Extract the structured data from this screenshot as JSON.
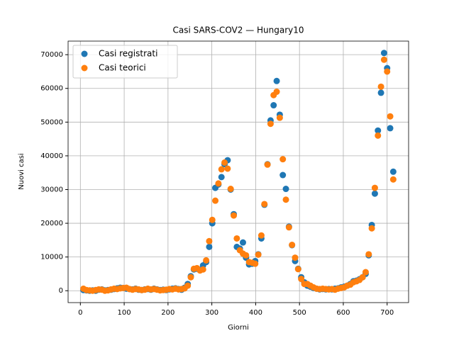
{
  "chart_data": {
    "type": "scatter",
    "title": "Casi SARS-COV2 — Hungary10",
    "x_label": "Giorni",
    "y_label": "Nuovi casi",
    "x": [
      7,
      14,
      21,
      28,
      35,
      42,
      49,
      56,
      63,
      70,
      77,
      84,
      91,
      98,
      105,
      112,
      119,
      126,
      133,
      140,
      147,
      154,
      161,
      168,
      175,
      182,
      189,
      196,
      203,
      210,
      217,
      224,
      231,
      238,
      245,
      252,
      259,
      266,
      273,
      280,
      287,
      294,
      301,
      308,
      315,
      322,
      329,
      336,
      343,
      350,
      357,
      364,
      371,
      378,
      385,
      392,
      399,
      406,
      413,
      420,
      427,
      434,
      441,
      448,
      455,
      462,
      469,
      476,
      483,
      490,
      497,
      504,
      511,
      518,
      525,
      532,
      539,
      546,
      553,
      560,
      567,
      574,
      581,
      588,
      595,
      602,
      609,
      616,
      623,
      630,
      637,
      644,
      651,
      658,
      665,
      672,
      679,
      686,
      693,
      700,
      707,
      714
    ],
    "series": [
      {
        "name": "Casi registrati",
        "color": "#1f77b4",
        "values": [
          200,
          100,
          0,
          100,
          0,
          300,
          400,
          100,
          200,
          300,
          500,
          700,
          900,
          800,
          600,
          500,
          400,
          600,
          300,
          200,
          400,
          500,
          300,
          600,
          400,
          200,
          300,
          200,
          400,
          600,
          700,
          500,
          300,
          900,
          2000,
          4300,
          6300,
          6500,
          6200,
          7500,
          8500,
          13000,
          20000,
          30500,
          31500,
          33700,
          37500,
          38700,
          30000,
          22700,
          13000,
          12500,
          14300,
          9800,
          7800,
          8000,
          8800,
          10800,
          15500,
          25500,
          37500,
          50500,
          55000,
          62200,
          52200,
          34300,
          30200,
          19000,
          13500,
          8800,
          6500,
          4000,
          2500,
          1500,
          1200,
          800,
          600,
          400,
          500,
          400,
          500,
          400,
          600,
          700,
          1000,
          1200,
          1500,
          2000,
          2800,
          3000,
          3400,
          4000,
          5000,
          10500,
          19500,
          28800,
          47500,
          58700,
          70500,
          66000,
          48200,
          35300
        ]
      },
      {
        "name": "Casi teorici",
        "color": "#ff7f0e",
        "values": [
          600,
          200,
          100,
          0,
          200,
          400,
          300,
          0,
          100,
          400,
          600,
          500,
          700,
          800,
          900,
          500,
          300,
          500,
          400,
          200,
          300,
          600,
          400,
          500,
          300,
          100,
          200,
          300,
          500,
          400,
          600,
          400,
          500,
          700,
          1500,
          4000,
          6500,
          6700,
          6000,
          6300,
          9000,
          14700,
          21000,
          26700,
          31800,
          36000,
          38000,
          36200,
          30200,
          22300,
          15500,
          12000,
          11000,
          10500,
          8500,
          8300,
          8000,
          10700,
          16400,
          25700,
          37400,
          49500,
          58000,
          59000,
          51300,
          39000,
          27000,
          18800,
          13600,
          9800,
          6400,
          3500,
          2000,
          2000,
          1500,
          1000,
          600,
          500,
          600,
          500,
          400,
          500,
          300,
          600,
          800,
          1000,
          1500,
          1800,
          2500,
          2800,
          3200,
          4000,
          5500,
          10800,
          18500,
          30500,
          46000,
          60500,
          68500,
          65000,
          51700,
          33000
        ]
      }
    ],
    "xlim": [
      -28,
      749
    ],
    "ylim": [
      -3525,
      74025
    ],
    "xticks": [
      0,
      100,
      200,
      300,
      400,
      500,
      600,
      700
    ],
    "yticks": [
      0,
      10000,
      20000,
      30000,
      40000,
      50000,
      60000,
      70000
    ],
    "grid": true,
    "legend": "upper left"
  }
}
